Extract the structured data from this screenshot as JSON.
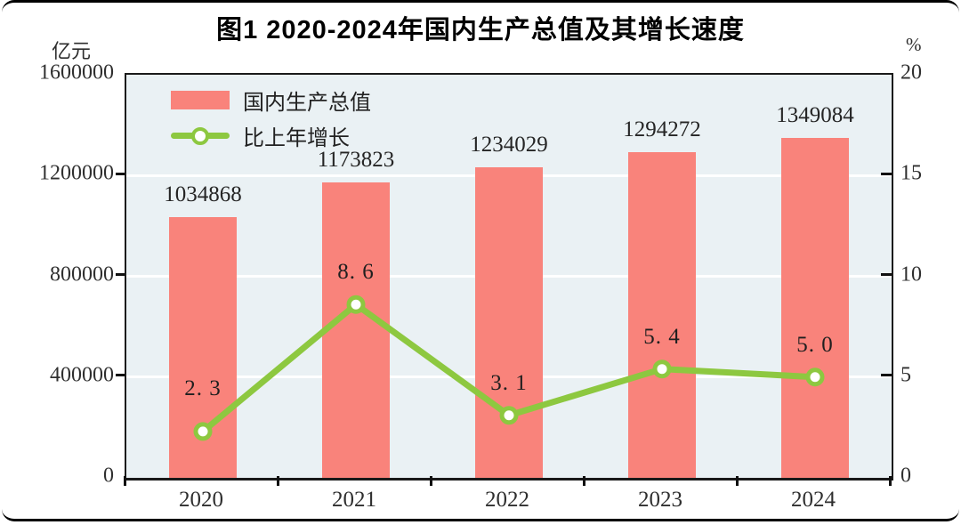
{
  "title": "图1  2020-2024年国内生产总值及其增长速度",
  "axes": {
    "left_unit": "亿元",
    "right_unit": "%",
    "left_ticks": [
      "1600000",
      "1200000",
      "800000",
      "400000",
      "0"
    ],
    "right_ticks": [
      "20",
      "15",
      "10",
      "5",
      "0"
    ]
  },
  "legend": {
    "items": [
      {
        "label": "国内生产总值",
        "type": "bar"
      },
      {
        "label": "比上年增长",
        "type": "line"
      }
    ]
  },
  "chart_data": {
    "type": "bar+line combo",
    "title": "图1 2020-2024年国内生产总值及其增长速度",
    "categories": [
      "2020",
      "2021",
      "2022",
      "2023",
      "2024"
    ],
    "series": [
      {
        "name": "国内生产总值",
        "type": "bar",
        "axis": "left",
        "unit": "亿元",
        "values": [
          1034868,
          1173823,
          1234029,
          1294272,
          1349084
        ],
        "value_labels": [
          "1034868",
          "1173823",
          "1234029",
          "1294272",
          "1349084"
        ]
      },
      {
        "name": "比上年增长",
        "type": "line",
        "axis": "right",
        "unit": "%",
        "values": [
          2.3,
          8.6,
          3.1,
          5.4,
          5.0
        ],
        "value_labels": [
          "2. 3",
          "8. 6",
          "3. 1",
          "5. 4",
          "5. 0"
        ]
      }
    ],
    "left_axis": {
      "min": 0,
      "max": 1600000,
      "step": 400000,
      "unit": "亿元"
    },
    "right_axis": {
      "min": 0,
      "max": 20,
      "step": 5,
      "unit": "%"
    },
    "grid": "horizontal white lines at each left-axis step",
    "legend_position": "top-left inside plot"
  },
  "colors": {
    "bar": "#f9837b",
    "line": "#8dc840",
    "plot_background": "#eaf1f4",
    "gridline": "#ffffff",
    "frame": "#1a1a1a",
    "text": "#2d2d2d"
  }
}
